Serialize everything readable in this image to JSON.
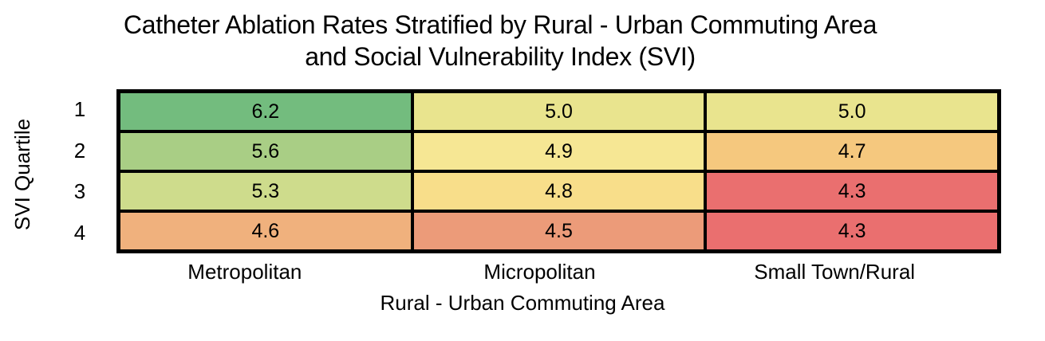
{
  "title": {
    "line1": "Catheter Ablation Rates Stratified by Rural - Urban Commuting Area",
    "line2": "and Social Vulnerability Index (SVI)"
  },
  "chart_data": {
    "type": "heatmap",
    "title": "Catheter Ablation Rates Stratified by Rural - Urban Commuting Area and Social Vulnerability Index (SVI)",
    "xlabel": "Rural - Urban Commuting Area",
    "ylabel": "SVI Quartile",
    "x_categories": [
      "Metropolitan",
      "Micropolitan",
      "Small Town/Rural"
    ],
    "y_categories": [
      "1",
      "2",
      "3",
      "4"
    ],
    "values": [
      [
        6.2,
        5.0,
        5.0
      ],
      [
        5.6,
        4.9,
        4.7
      ],
      [
        5.3,
        4.8,
        4.3
      ],
      [
        4.6,
        4.5,
        4.3
      ]
    ],
    "value_decimals": 1,
    "cell_colors": [
      [
        "#73BC7E",
        "#E9E48E",
        "#E9E48E"
      ],
      [
        "#A9CE85",
        "#F6E794",
        "#F5C87E"
      ],
      [
        "#CEDC8C",
        "#F8DE8A",
        "#EA6F6F"
      ],
      [
        "#F0B17D",
        "#EC9B79",
        "#EA6F6F"
      ]
    ],
    "colormap": "red-yellow-green",
    "grid_border_color": "#000000",
    "background_color": "#FFFFFF",
    "text_color": "#000000",
    "legend": "none"
  }
}
